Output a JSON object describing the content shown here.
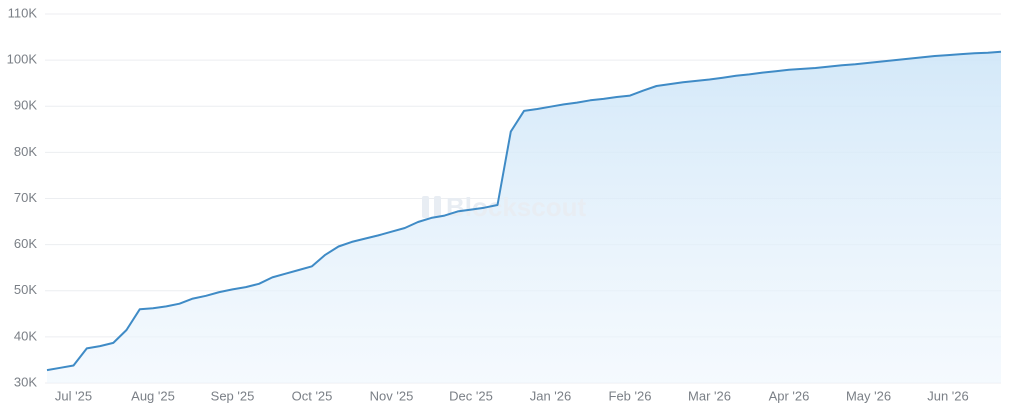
{
  "chart_data": {
    "type": "area",
    "watermark": "Blockscout",
    "categories": [
      null,
      null,
      "Jul '25",
      null,
      null,
      null,
      null,
      null,
      "Aug '25",
      null,
      null,
      null,
      null,
      null,
      "Sep '25",
      null,
      null,
      null,
      null,
      null,
      "Oct '25",
      null,
      null,
      null,
      null,
      null,
      "Nov '25",
      null,
      null,
      null,
      null,
      null,
      "Dec '25",
      null,
      null,
      null,
      null,
      null,
      "Jan '26",
      null,
      null,
      null,
      null,
      null,
      "Feb '26",
      null,
      null,
      null,
      null,
      null,
      "Mar '26",
      null,
      null,
      null,
      null,
      null,
      "Apr '26",
      null,
      null,
      null,
      null,
      null,
      "May '26",
      null,
      null,
      null,
      null,
      null,
      "Jun '26",
      null,
      null,
      null,
      null
    ],
    "series": [
      {
        "color": "#3f8bc6",
        "values": [
          32800,
          33300,
          33800,
          37500,
          38000,
          38700,
          41500,
          46000,
          46200,
          46600,
          47200,
          48300,
          48900,
          49700,
          50300,
          50800,
          51500,
          52900,
          53700,
          54500,
          55300,
          57800,
          59600,
          60600,
          61300,
          62000,
          62800,
          63600,
          64900,
          65800,
          66300,
          67200,
          67600,
          68000,
          68600,
          84500,
          89000,
          89400,
          89900,
          90400,
          90800,
          91300,
          91600,
          92000,
          92300,
          93400,
          94400,
          94800,
          95200,
          95500,
          95800,
          96200,
          96600,
          96900,
          97300,
          97600,
          97900,
          98100,
          98300,
          98600,
          98900,
          99100,
          99400,
          99700,
          100000,
          100300,
          100600,
          100900,
          101100,
          101300,
          101500,
          101600,
          101800
        ]
      }
    ],
    "ylim": [
      30000,
      110000
    ],
    "yticks": [
      {
        "value": 30000,
        "label": "30K"
      },
      {
        "value": 40000,
        "label": "40K"
      },
      {
        "value": 50000,
        "label": "50K"
      },
      {
        "value": 60000,
        "label": "60K"
      },
      {
        "value": 70000,
        "label": "70K"
      },
      {
        "value": 80000,
        "label": "80K"
      },
      {
        "value": 90000,
        "label": "90K"
      },
      {
        "value": 100000,
        "label": "100K"
      },
      {
        "value": 110000,
        "label": "110K"
      }
    ],
    "grid": true
  }
}
